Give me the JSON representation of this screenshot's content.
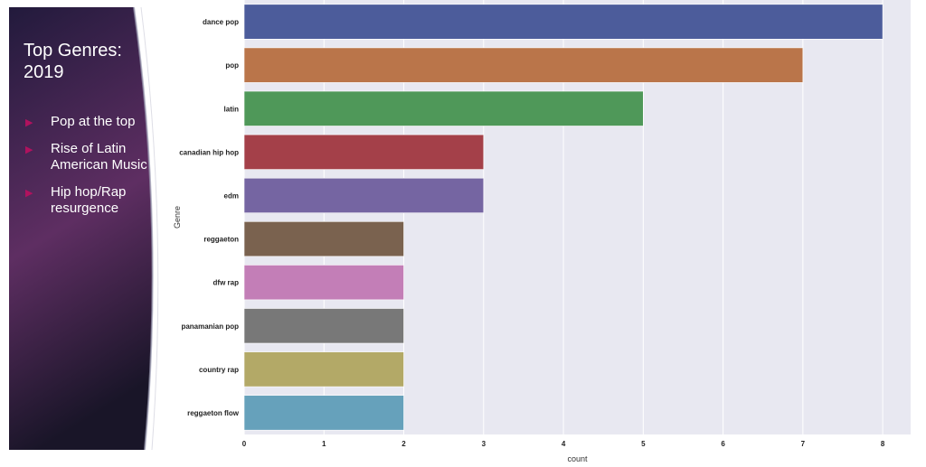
{
  "slide": {
    "title": "Top Genres: 2019",
    "bullets": [
      "Pop at the top",
      "Rise of Latin American Music",
      "Hip hop/Rap resurgence"
    ],
    "colors": {
      "panel_top": "#221a3c",
      "panel_mid": "#5e2e62",
      "panel_bottom": "#191528",
      "bullet_marker": "#b0125e"
    }
  },
  "chart_data": {
    "type": "bar",
    "orientation": "horizontal",
    "categories": [
      "dance pop",
      "pop",
      "latin",
      "canadian hip hop",
      "edm",
      "reggaeton",
      "dfw rap",
      "panamanian pop",
      "country rap",
      "reggaeton flow"
    ],
    "values": [
      8,
      7,
      5,
      3,
      3,
      2,
      2,
      2,
      2,
      2
    ],
    "colors": [
      "#4c5c9b",
      "#ba754a",
      "#4f9859",
      "#a44049",
      "#7565a2",
      "#7a624f",
      "#c37eb7",
      "#787878",
      "#b3a967",
      "#66a1bb"
    ],
    "xticks": [
      "0",
      "1",
      "2",
      "3",
      "4",
      "5",
      "6",
      "7",
      "8"
    ],
    "xlim": [
      0,
      8.35
    ],
    "xlabel": "count",
    "ylabel": "Genre",
    "grid": true,
    "background": "#e8e8f1"
  }
}
